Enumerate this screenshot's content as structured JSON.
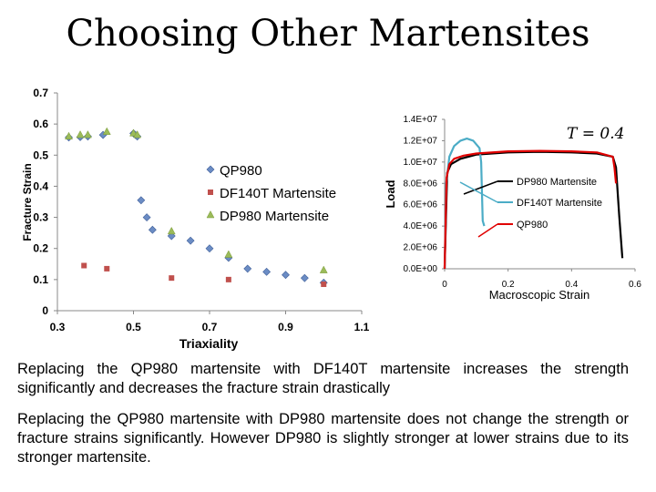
{
  "slide": {
    "title": "Choosing Other Martensites",
    "paragraph1": "Replacing the QP980 martensite with DF140T martensite increases the strength significantly and decreases the fracture strain drastically",
    "paragraph2": "Replacing the QP980 martensite with DP980 martensite does not change the strength or fracture strains significantly. However DP980 is slightly stronger at lower strains due to its stronger martensite."
  },
  "chart_data": [
    {
      "type": "scatter",
      "xlabel": "Triaxiality",
      "ylabel": "Fracture Strain",
      "xlim": [
        0.3,
        1.1
      ],
      "ylim": [
        0,
        0.7
      ],
      "xticks": [
        "0.3",
        "0.5",
        "0.7",
        "0.9",
        "1.1"
      ],
      "yticks": [
        "0",
        "0.1",
        "0.2",
        "0.3",
        "0.4",
        "0.5",
        "0.6",
        "0.7"
      ],
      "legend_position": "center",
      "series": [
        {
          "name": "QP980",
          "color": "#6b8cc4",
          "marker": "diamond",
          "points": [
            [
              0.33,
              0.557
            ],
            [
              0.36,
              0.558
            ],
            [
              0.38,
              0.56
            ],
            [
              0.42,
              0.565
            ],
            [
              0.5,
              0.57
            ],
            [
              0.505,
              0.565
            ],
            [
              0.51,
              0.56
            ],
            [
              0.52,
              0.355
            ],
            [
              0.535,
              0.3
            ],
            [
              0.55,
              0.26
            ],
            [
              0.6,
              0.24
            ],
            [
              0.65,
              0.225
            ],
            [
              0.7,
              0.2
            ],
            [
              0.75,
              0.17
            ],
            [
              0.8,
              0.135
            ],
            [
              0.85,
              0.125
            ],
            [
              0.9,
              0.115
            ],
            [
              0.95,
              0.105
            ],
            [
              1.0,
              0.09
            ]
          ]
        },
        {
          "name": "DF140T Martensite",
          "color": "#c0504d",
          "marker": "square",
          "points": [
            [
              0.37,
              0.145
            ],
            [
              0.43,
              0.135
            ],
            [
              0.6,
              0.105
            ],
            [
              0.75,
              0.1
            ],
            [
              1.0,
              0.085
            ]
          ]
        },
        {
          "name": "DP980 Martensite",
          "color": "#9bbb59",
          "marker": "triangle",
          "points": [
            [
              0.33,
              0.56
            ],
            [
              0.36,
              0.565
            ],
            [
              0.38,
              0.565
            ],
            [
              0.43,
              0.575
            ],
            [
              0.5,
              0.57
            ],
            [
              0.51,
              0.565
            ],
            [
              0.6,
              0.255
            ],
            [
              0.75,
              0.18
            ],
            [
              1.0,
              0.13
            ]
          ]
        }
      ]
    },
    {
      "type": "line",
      "xlabel": "Macroscopic Strain",
      "ylabel": "Load",
      "xlim": [
        0,
        0.6
      ],
      "ylim": [
        0,
        14000000
      ],
      "xticks": [
        "0",
        "0.2",
        "0.4",
        "0.6"
      ],
      "yticks": [
        "0.0E+00",
        "2.0E+06",
        "4.0E+06",
        "6.0E+06",
        "8.0E+06",
        "1.0E+07",
        "1.2E+07",
        "1.4E+07"
      ],
      "annotation": "T = 0.4",
      "series": [
        {
          "name": "DP980 Martensite",
          "color": "#000000",
          "points": [
            [
              0,
              0
            ],
            [
              0.008,
              9000000
            ],
            [
              0.02,
              9800000
            ],
            [
              0.05,
              10300000
            ],
            [
              0.1,
              10700000
            ],
            [
              0.2,
              10900000
            ],
            [
              0.3,
              10950000
            ],
            [
              0.4,
              10900000
            ],
            [
              0.48,
              10800000
            ],
            [
              0.53,
              10500000
            ],
            [
              0.54,
              9500000
            ],
            [
              0.55,
              5000000
            ],
            [
              0.56,
              1000000
            ]
          ]
        },
        {
          "name": "DF140T Martensite",
          "color": "#4bacc6",
          "points": [
            [
              0,
              0
            ],
            [
              0.005,
              8000000
            ],
            [
              0.015,
              10500000
            ],
            [
              0.03,
              11500000
            ],
            [
              0.05,
              12000000
            ],
            [
              0.07,
              12200000
            ],
            [
              0.09,
              12000000
            ],
            [
              0.11,
              11300000
            ],
            [
              0.115,
              10000000
            ],
            [
              0.12,
              4500000
            ],
            [
              0.125,
              4000000
            ]
          ]
        },
        {
          "name": "QP980",
          "color": "#e00000",
          "points": [
            [
              0,
              0
            ],
            [
              0.006,
              8500000
            ],
            [
              0.015,
              9800000
            ],
            [
              0.03,
              10300000
            ],
            [
              0.06,
              10600000
            ],
            [
              0.1,
              10800000
            ],
            [
              0.2,
              11000000
            ],
            [
              0.3,
              11050000
            ],
            [
              0.4,
              11000000
            ],
            [
              0.48,
              10900000
            ],
            [
              0.53,
              10500000
            ],
            [
              0.535,
              9500000
            ],
            [
              0.54,
              8000000
            ]
          ]
        }
      ]
    }
  ]
}
